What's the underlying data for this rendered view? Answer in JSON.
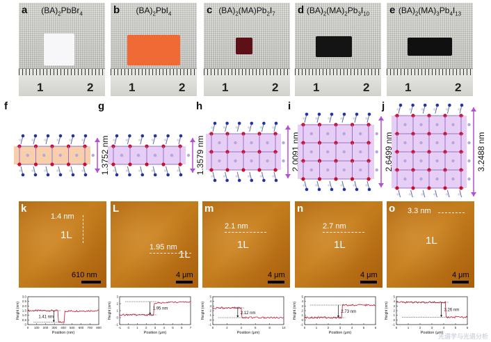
{
  "photos": [
    {
      "label": "a",
      "formula_parts": [
        [
          "(BA)",
          ""
        ],
        [
          "2",
          "sub"
        ],
        [
          "PbBr",
          ""
        ],
        [
          "4",
          "sub"
        ]
      ],
      "sample_color": "#f7f7f9"
    },
    {
      "label": "b",
      "formula_parts": [
        [
          "(BA)",
          ""
        ],
        [
          "2",
          "sub"
        ],
        [
          "PbI",
          ""
        ],
        [
          "4",
          "sub"
        ]
      ],
      "sample_color": "#f06a35"
    },
    {
      "label": "c",
      "formula_parts": [
        [
          "(BA)",
          ""
        ],
        [
          "2",
          "sub"
        ],
        [
          "(MA)Pb",
          ""
        ],
        [
          "2",
          "sub"
        ],
        [
          "I",
          ""
        ],
        [
          "7",
          "sub"
        ]
      ],
      "sample_color": "#5e1018"
    },
    {
      "label": "d",
      "formula_parts": [
        [
          "(BA)",
          ""
        ],
        [
          "2",
          "sub"
        ],
        [
          "(MA)",
          ""
        ],
        [
          "2",
          "sub"
        ],
        [
          "Pb",
          ""
        ],
        [
          "3",
          "sub"
        ],
        [
          "I",
          ""
        ],
        [
          "10",
          "sub"
        ]
      ],
      "sample_color": "#141414"
    },
    {
      "label": "e",
      "formula_parts": [
        [
          "(BA)",
          ""
        ],
        [
          "2",
          "sub"
        ],
        [
          "(MA)",
          ""
        ],
        [
          "3",
          "sub"
        ],
        [
          "Pb",
          ""
        ],
        [
          "4",
          "sub"
        ],
        [
          "I",
          ""
        ],
        [
          "13",
          "sub"
        ]
      ],
      "sample_color": "#101010"
    }
  ],
  "ruler_numbers": [
    "1",
    "2"
  ],
  "structures": [
    {
      "label": "f",
      "thickness": "1.3752 nm",
      "band_color": "#f6c79b",
      "layers": 1
    },
    {
      "label": "g",
      "thickness": "1.3579 nm",
      "band_color": "#e3c6f2",
      "layers": 1
    },
    {
      "label": "h",
      "thickness": "2.0091 nm",
      "band_color": "#e3c6f2",
      "layers": 2
    },
    {
      "label": "i",
      "thickness": "2.6499 nm",
      "band_color": "#e3c6f2",
      "layers": 3
    },
    {
      "label": "j",
      "thickness": "3.2488 nm",
      "band_color": "#e3c6f2",
      "layers": 4
    }
  ],
  "afm": [
    {
      "label": "k",
      "step": "1.4 nm",
      "layer": "1L",
      "scale": "610 nm"
    },
    {
      "label": "L",
      "step": "1.95 nm",
      "layer": "1L",
      "scale": "4 μm"
    },
    {
      "label": "m",
      "step": "2.1 nm",
      "layer": "1L",
      "scale": "4 μm"
    },
    {
      "label": "n",
      "step": "2.7 nm",
      "layer": "1L",
      "scale": "4 μm"
    },
    {
      "label": "o",
      "step": "3.3 nm",
      "layer": "1L",
      "scale": "4 μm"
    }
  ],
  "chart_data": [
    {
      "type": "line",
      "xlabel": "Position (nm)",
      "ylabel": "Height (nm)",
      "xlim": [
        0,
        800
      ],
      "ylim": [
        0,
        3
      ],
      "xticks": [
        "0",
        "100",
        "200",
        "300",
        "400",
        "500",
        "600",
        "700",
        "800"
      ],
      "yticks": [
        "0",
        "0.5",
        "1.0",
        "1.5",
        "2.0",
        "2.5",
        "3.0"
      ],
      "annotation": "1.41 nm",
      "steps": [
        [
          0,
          1.5
        ],
        [
          340,
          1.5
        ],
        [
          340,
          0.25
        ],
        [
          410,
          0.25
        ],
        [
          410,
          1.45
        ],
        [
          800,
          1.5
        ]
      ]
    },
    {
      "type": "line",
      "xlabel": "Position (μm)",
      "ylabel": "Height (nm)",
      "xlim": [
        -1,
        7
      ],
      "ylim": [
        -1,
        3
      ],
      "xticks": [
        "-1",
        "0",
        "1",
        "2",
        "3",
        "4",
        "5",
        "6",
        "7"
      ],
      "yticks": [
        "-1",
        "0",
        "1",
        "2",
        "3"
      ],
      "annotation": "1.95 nm",
      "steps": [
        [
          -1,
          0.4
        ],
        [
          2.9,
          0.4
        ],
        [
          2.9,
          2.1
        ],
        [
          7,
          2.3
        ]
      ]
    },
    {
      "type": "line",
      "xlabel": "Position (μm)",
      "ylabel": "Height (nm)",
      "xlim": [
        0,
        10
      ],
      "ylim": [
        -1,
        5
      ],
      "xticks": [
        "0",
        "2",
        "4",
        "6",
        "8",
        "10"
      ],
      "yticks": [
        "-1",
        "0",
        "1",
        "2",
        "3",
        "4",
        "5"
      ],
      "annotation": "2.12 nm",
      "steps": [
        [
          0,
          2.6
        ],
        [
          4.1,
          2.6
        ],
        [
          4.1,
          0.5
        ],
        [
          10,
          0.5
        ]
      ]
    },
    {
      "type": "line",
      "xlabel": "Position (μm)",
      "ylabel": "Height (nm)",
      "xlim": [
        0,
        6
      ],
      "ylim": [
        -1,
        5
      ],
      "xticks": [
        "0",
        "1",
        "2",
        "3",
        "4",
        "5",
        "6"
      ],
      "yticks": [
        "-1",
        "0",
        "1",
        "2",
        "3",
        "4",
        "5"
      ],
      "annotation": "2.73 nm",
      "steps": [
        [
          0,
          0.5
        ],
        [
          3.2,
          0.5
        ],
        [
          3.2,
          3.2
        ],
        [
          6,
          3.2
        ]
      ]
    },
    {
      "type": "line",
      "xlabel": "Position (μm)",
      "ylabel": "Height (nm)",
      "xlim": [
        0,
        6
      ],
      "ylim": [
        -1,
        5
      ],
      "xticks": [
        "0",
        "1",
        "2",
        "3",
        "4",
        "5",
        "6"
      ],
      "yticks": [
        "-1",
        "0",
        "1",
        "2",
        "3",
        "4",
        "5"
      ],
      "annotation": "3.26 nm",
      "steps": [
        [
          0,
          3.8
        ],
        [
          4.15,
          3.8
        ],
        [
          4.15,
          0.6
        ],
        [
          6,
          0.6
        ]
      ]
    }
  ],
  "watermark": "光谱学与光谱分析"
}
